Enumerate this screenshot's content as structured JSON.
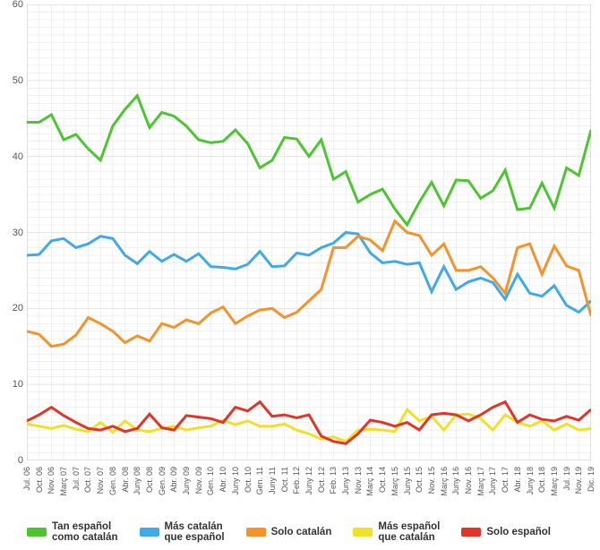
{
  "chart": {
    "type": "line",
    "background_color": "#ffffff",
    "grid_minor_color": "#e6e6e6",
    "grid_major_color": "#cccccc",
    "aspect_w": 670,
    "aspect_h": 614,
    "font_family": "Arial",
    "label_fontsize": 11,
    "xlabel_fontsize": 9,
    "legend_fontsize": 11.5,
    "ylim": [
      0,
      60
    ],
    "ytick_step_major": 10,
    "ytick_step_minor": 1,
    "x_labels": [
      "Jul. 06",
      "Oct. 06",
      "Nov. 06",
      "Març 07",
      "Jul. 07",
      "Oct. 07",
      "Nov. 07",
      "Gen. 08",
      "Abr. 08",
      "Juny 08",
      "Oct. 08",
      "Gen. 09",
      "Abr. 09",
      "Juny 09",
      "Nov. 09",
      "Gen. 10",
      "Abr. 10",
      "Juny 10",
      "Oct. 10",
      "Gen. 11",
      "Juny 11",
      "Oct. 11",
      "Feb. 12",
      "Juny 12",
      "Oct. 12",
      "Feb. 13",
      "Juny 13",
      "Nov. 13",
      "Març 14",
      "Oct. 14",
      "Març 15",
      "Juny 15",
      "Oct. 15",
      "Nov. 15",
      "Març 16",
      "Juny 16",
      "Nov. 16",
      "Març 17",
      "Juny 17",
      "Oct. 17",
      "Abr. 18",
      "Juny 18",
      "Oct. 18",
      "Març 19",
      "Jul. 19",
      "Nov. 19",
      "Dic. 19"
    ],
    "line_width": 3,
    "series": [
      {
        "id": "tan_esp_como_cat",
        "label": "Tan español\ncomo catalán",
        "color": "#4cc531",
        "values": [
          44.5,
          44.5,
          45.5,
          42.2,
          42.9,
          41.0,
          39.5,
          44.0,
          46.2,
          48.0,
          43.8,
          45.8,
          45.3,
          44.0,
          42.2,
          41.8,
          42.0,
          43.5,
          41.7,
          38.5,
          39.5,
          42.5,
          42.3,
          40.0,
          42.2,
          37.0,
          38.0,
          34.0,
          35.0,
          35.7,
          33.1,
          31.0,
          34.0,
          36.6,
          33.5,
          36.9,
          36.8,
          34.5,
          35.5,
          38.2,
          33.0,
          33.2,
          36.5,
          33.2,
          38.5,
          37.5,
          43.5
        ]
      },
      {
        "id": "mas_cat_que_esp",
        "label": "Más catalán\nque español",
        "color": "#40a9e7",
        "values": [
          27.0,
          27.1,
          28.9,
          29.2,
          28.0,
          28.5,
          29.5,
          29.2,
          27.0,
          25.9,
          27.5,
          26.2,
          27.1,
          26.2,
          27.2,
          25.5,
          25.4,
          25.2,
          25.8,
          27.5,
          25.5,
          25.6,
          27.3,
          27.0,
          28.0,
          28.6,
          30.0,
          29.8,
          27.3,
          26.0,
          26.2,
          25.8,
          26.0,
          22.2,
          25.5,
          22.5,
          23.5,
          24.0,
          23.4,
          21.2,
          24.5,
          22.0,
          21.6,
          23.0,
          20.4,
          19.5,
          21.0
        ]
      },
      {
        "id": "solo_catalan",
        "label": "Solo catalán",
        "color": "#f4922c",
        "values": [
          17.0,
          16.6,
          15.0,
          15.3,
          16.5,
          18.8,
          18.0,
          17.0,
          15.5,
          16.4,
          15.7,
          18.0,
          17.5,
          18.5,
          18.0,
          19.4,
          20.2,
          18.0,
          19.0,
          19.8,
          20.0,
          18.8,
          19.5,
          21.0,
          22.5,
          28.0,
          28.0,
          29.5,
          29.0,
          27.6,
          31.5,
          30.0,
          29.6,
          27.0,
          28.5,
          25.0,
          25.0,
          25.5,
          24.0,
          22.0,
          28.0,
          28.5,
          24.5,
          28.2,
          25.6,
          25.0,
          19.0
        ]
      },
      {
        "id": "mas_esp_que_cat",
        "label": "Más español\nque catalán",
        "color": "#f1e02a",
        "values": [
          4.8,
          4.5,
          4.2,
          4.6,
          4.1,
          3.8,
          5.0,
          3.7,
          5.2,
          4.0,
          3.8,
          4.2,
          4.5,
          4.0,
          4.3,
          4.5,
          5.3,
          4.7,
          5.2,
          4.5,
          4.5,
          4.8,
          4.0,
          3.5,
          2.8,
          3.1,
          2.5,
          4.0,
          4.1,
          4.0,
          3.8,
          6.7,
          5.2,
          5.8,
          4.0,
          6.0,
          6.1,
          5.5,
          4.0,
          6.0,
          5.0,
          4.5,
          5.2,
          4.0,
          4.8,
          4.0,
          4.2
        ]
      },
      {
        "id": "solo_espanol",
        "label": "Solo español",
        "color": "#e23429",
        "values": [
          5.2,
          6.0,
          7.0,
          5.9,
          5.0,
          4.2,
          4.0,
          4.5,
          3.8,
          4.2,
          6.1,
          4.3,
          4.0,
          5.9,
          5.7,
          5.5,
          5.0,
          7.0,
          6.5,
          7.7,
          5.8,
          6.0,
          5.6,
          6.0,
          3.2,
          2.5,
          2.2,
          3.5,
          5.3,
          5.0,
          4.5,
          5.0,
          4.0,
          6.0,
          6.2,
          6.0,
          5.2,
          6.0,
          7.0,
          7.7,
          5.0,
          6.0,
          5.4,
          5.2,
          5.8,
          5.3,
          6.7
        ]
      }
    ]
  }
}
